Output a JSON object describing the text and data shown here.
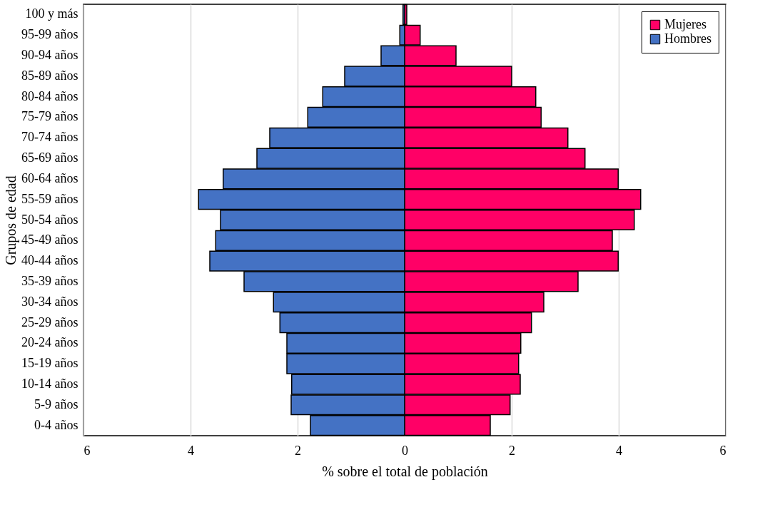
{
  "chart_data": {
    "type": "bar",
    "orientation": "horizontal",
    "stacked": true,
    "categories": [
      "100 y más",
      "95-99 años",
      "90-94 años",
      "85-89 años",
      "80-84 años",
      "75-79 años",
      "70-74 años",
      "65-69 años",
      "60-64 años",
      "55-59 años",
      "50-54 años",
      "45-49 años",
      "40-44 años",
      "35-39 años",
      "30-34 años",
      "25-29 años",
      "20-24 años",
      "15-19 años",
      "10-14 años",
      "5-9 años",
      "0-4 años"
    ],
    "series": [
      {
        "name": "Mujeres",
        "color": "#ff0066",
        "values": [
          0.04,
          0.29,
          0.96,
          2.0,
          2.45,
          2.55,
          3.05,
          3.37,
          3.99,
          4.41,
          4.29,
          3.88,
          3.99,
          3.24,
          2.6,
          2.37,
          2.17,
          2.13,
          2.16,
          1.97,
          1.6
        ]
      },
      {
        "name": "Hombres",
        "color": "#4472c4",
        "values": [
          -0.03,
          -0.09,
          -0.44,
          -1.12,
          -1.53,
          -1.81,
          -2.52,
          -2.76,
          -3.39,
          -3.85,
          -3.44,
          -3.53,
          -3.64,
          -3.0,
          -2.45,
          -2.33,
          -2.2,
          -2.2,
          -2.11,
          -2.12,
          -1.76
        ]
      }
    ],
    "xlim": [
      -6,
      6
    ],
    "xticks": [
      {
        "value": -6,
        "label": "6"
      },
      {
        "value": -4,
        "label": "4"
      },
      {
        "value": -2,
        "label": "2"
      },
      0,
      2,
      4,
      6
    ],
    "xlabel": "% sobre el total de población",
    "ylabel": "Grupos de edad",
    "grid": "x",
    "legend": "top right"
  }
}
